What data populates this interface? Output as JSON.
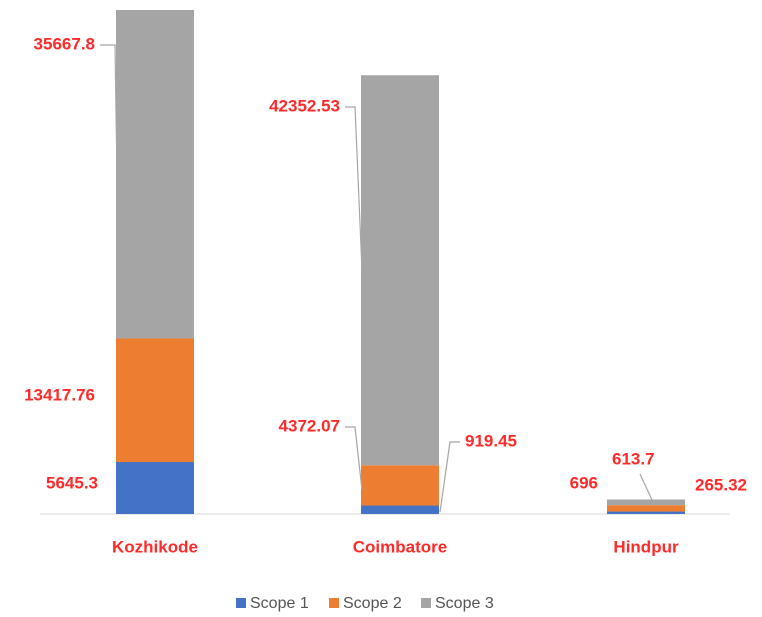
{
  "chart_data": {
    "type": "stacked_bar",
    "categories": [
      "Kozhikode",
      "Coimbatore",
      "Hindpur"
    ],
    "series": [
      {
        "name": "Scope 1",
        "color": "#4472c4",
        "values": [
          5645.3,
          919.45,
          265.32
        ]
      },
      {
        "name": "Scope 2",
        "color": "#ed7d31",
        "values": [
          13417.76,
          4372.07,
          696
        ]
      },
      {
        "name": "Scope 3",
        "color": "#a5a5a5",
        "values": [
          35667.8,
          42352.53,
          613.7
        ]
      }
    ]
  }
}
